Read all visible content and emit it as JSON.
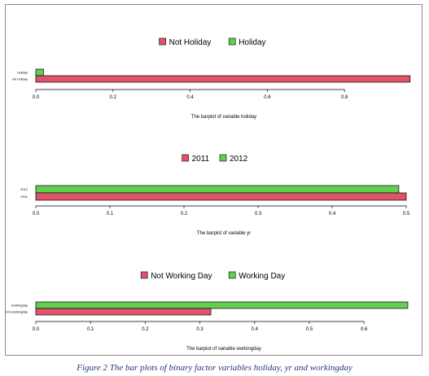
{
  "caption": "Figure 2 The bar plots of binary factor variables holiday, yr and workingday",
  "colors": {
    "red": "#df536b",
    "green": "#61d04f",
    "axis": "#000000",
    "frame": "#8a8a8a"
  },
  "chart_data": [
    {
      "type": "bar",
      "orientation": "horizontal",
      "categories": [
        "not holiday",
        "holiday"
      ],
      "values": [
        0.97,
        0.02
      ],
      "colors": [
        "#df536b",
        "#61d04f"
      ],
      "legend": [
        "Not Holiday",
        "Holiday"
      ],
      "legend_position": "top",
      "xlabel": "The barplot of variable holiday",
      "xticks": [
        0.0,
        0.2,
        0.4,
        0.6,
        0.8
      ],
      "xlim": [
        0,
        0.97
      ],
      "grid": false
    },
    {
      "type": "bar",
      "orientation": "horizontal",
      "categories": [
        "2011",
        "2012"
      ],
      "values": [
        0.5,
        0.49
      ],
      "colors": [
        "#df536b",
        "#61d04f"
      ],
      "legend": [
        "2011",
        "2012"
      ],
      "legend_position": "top",
      "xlabel": "The barplot of variable yr",
      "xticks": [
        0.0,
        0.1,
        0.2,
        0.3,
        0.4,
        0.5
      ],
      "xlim": [
        0,
        0.5
      ],
      "grid": false
    },
    {
      "type": "bar",
      "orientation": "horizontal",
      "categories": [
        "not workingday",
        "workingday"
      ],
      "values": [
        0.32,
        0.68
      ],
      "colors": [
        "#df536b",
        "#61d04f"
      ],
      "legend": [
        "Not Working Day",
        "Working Day"
      ],
      "legend_position": "top",
      "xlabel": "The barplot of variable workingday",
      "xticks": [
        0.0,
        0.1,
        0.2,
        0.3,
        0.4,
        0.5,
        0.6
      ],
      "xlim": [
        0,
        0.68
      ],
      "grid": false
    }
  ]
}
